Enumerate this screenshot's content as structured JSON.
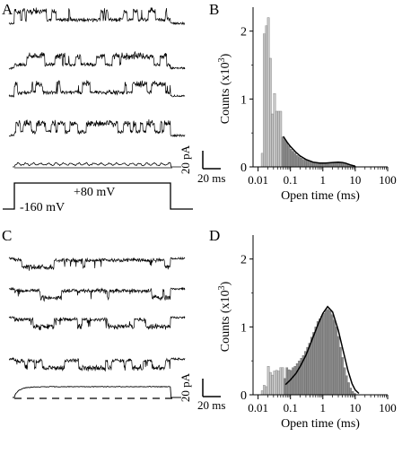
{
  "panel_labels": {
    "a": "A",
    "b": "B",
    "c": "C",
    "d": "D"
  },
  "panel_a": {
    "scale_current": "20 pA",
    "scale_time": "20 ms",
    "voltage_step": "+80 mV",
    "holding_voltage": "-160 mV"
  },
  "panel_c": {
    "scale_current": "20 pA",
    "scale_time": "20 ms"
  },
  "colors": {
    "light_bar": "#c8c8c8",
    "dark_bar": "#8c8c8c",
    "trace": "#000000"
  },
  "chart_data": [
    {
      "type": "bar",
      "panel": "B",
      "xscale": "log",
      "xlim": [
        0.007,
        100
      ],
      "ylim": [
        0,
        2.3
      ],
      "xlabel": "Open time (ms)",
      "ylabel": "Counts (x10",
      "ylabel_sup": "3",
      "ylabel_end": ")",
      "x_ticks": [
        "0.01",
        "0.1",
        "1",
        "10",
        "100"
      ],
      "y_ticks": [
        "0",
        "1",
        "2"
      ],
      "bins": [
        {
          "x": 0.0134,
          "y": 0.2,
          "shade": "light"
        },
        {
          "x": 0.0155,
          "y": 1.96,
          "shade": "light"
        },
        {
          "x": 0.018,
          "y": 2.08,
          "shade": "light"
        },
        {
          "x": 0.0208,
          "y": 2.2,
          "shade": "light"
        },
        {
          "x": 0.0241,
          "y": 1.6,
          "shade": "light"
        },
        {
          "x": 0.0279,
          "y": 0.78,
          "shade": "light"
        },
        {
          "x": 0.0323,
          "y": 1.08,
          "shade": "light"
        },
        {
          "x": 0.0374,
          "y": 0.82,
          "shade": "light"
        },
        {
          "x": 0.0433,
          "y": 0.82,
          "shade": "light"
        },
        {
          "x": 0.0501,
          "y": 0.82,
          "shade": "light"
        },
        {
          "x": 0.058,
          "y": 0.44,
          "shade": "dark"
        },
        {
          "x": 0.0671,
          "y": 0.4,
          "shade": "dark"
        },
        {
          "x": 0.0777,
          "y": 0.36,
          "shade": "dark"
        },
        {
          "x": 0.0899,
          "y": 0.31,
          "shade": "dark"
        },
        {
          "x": 0.104,
          "y": 0.26,
          "shade": "dark"
        },
        {
          "x": 0.12,
          "y": 0.23,
          "shade": "dark"
        },
        {
          "x": 0.139,
          "y": 0.2,
          "shade": "dark"
        },
        {
          "x": 0.161,
          "y": 0.17,
          "shade": "dark"
        },
        {
          "x": 0.187,
          "y": 0.15,
          "shade": "dark"
        },
        {
          "x": 0.216,
          "y": 0.13,
          "shade": "dark"
        },
        {
          "x": 0.25,
          "y": 0.11,
          "shade": "dark"
        },
        {
          "x": 0.29,
          "y": 0.1,
          "shade": "dark"
        },
        {
          "x": 0.335,
          "y": 0.09,
          "shade": "dark"
        },
        {
          "x": 0.388,
          "y": 0.08,
          "shade": "dark"
        },
        {
          "x": 0.449,
          "y": 0.07,
          "shade": "dark"
        },
        {
          "x": 0.52,
          "y": 0.06,
          "shade": "dark"
        },
        {
          "x": 0.6,
          "y": 0.06,
          "shade": "dark"
        },
        {
          "x": 0.7,
          "y": 0.05,
          "shade": "dark"
        },
        {
          "x": 0.81,
          "y": 0.05,
          "shade": "dark"
        },
        {
          "x": 0.93,
          "y": 0.05,
          "shade": "dark"
        },
        {
          "x": 1.08,
          "y": 0.05,
          "shade": "dark"
        },
        {
          "x": 1.25,
          "y": 0.06,
          "shade": "dark"
        },
        {
          "x": 1.45,
          "y": 0.06,
          "shade": "dark"
        },
        {
          "x": 1.68,
          "y": 0.06,
          "shade": "dark"
        },
        {
          "x": 1.94,
          "y": 0.06,
          "shade": "dark"
        },
        {
          "x": 2.25,
          "y": 0.06,
          "shade": "dark"
        },
        {
          "x": 2.6,
          "y": 0.06,
          "shade": "dark"
        },
        {
          "x": 3.01,
          "y": 0.06,
          "shade": "dark"
        },
        {
          "x": 3.49,
          "y": 0.06,
          "shade": "dark"
        },
        {
          "x": 4.04,
          "y": 0.05,
          "shade": "dark"
        },
        {
          "x": 4.67,
          "y": 0.05,
          "shade": "dark"
        },
        {
          "x": 5.41,
          "y": 0.04,
          "shade": "dark"
        },
        {
          "x": 6.26,
          "y": 0.03,
          "shade": "dark"
        },
        {
          "x": 7.25,
          "y": 0.02,
          "shade": "dark"
        },
        {
          "x": 8.39,
          "y": 0.02,
          "shade": "dark"
        },
        {
          "x": 9.71,
          "y": 0.01,
          "shade": "dark"
        }
      ],
      "fit": {
        "x": [
          0.06,
          0.08,
          0.1,
          0.15,
          0.2,
          0.3,
          0.5,
          0.8,
          1.2,
          2,
          3,
          4,
          5,
          7,
          10
        ],
        "y": [
          0.45,
          0.36,
          0.3,
          0.21,
          0.16,
          0.11,
          0.07,
          0.055,
          0.055,
          0.065,
          0.07,
          0.065,
          0.055,
          0.03,
          0.01
        ]
      }
    },
    {
      "type": "bar",
      "panel": "D",
      "xscale": "log",
      "xlim": [
        0.007,
        100
      ],
      "ylim": [
        0,
        2.3
      ],
      "xlabel": "Open time (ms)",
      "ylabel": "Counts (x10",
      "ylabel_sup": "3",
      "ylabel_end": ")",
      "x_ticks": [
        "0.01",
        "0.1",
        "1",
        "10",
        "100"
      ],
      "y_ticks": [
        "0",
        "1",
        "2"
      ],
      "bins": [
        {
          "x": 0.0134,
          "y": 0.06,
          "shade": "light"
        },
        {
          "x": 0.0155,
          "y": 0.14,
          "shade": "light"
        },
        {
          "x": 0.018,
          "y": 0.12,
          "shade": "light"
        },
        {
          "x": 0.0208,
          "y": 0.42,
          "shade": "light"
        },
        {
          "x": 0.0241,
          "y": 0.33,
          "shade": "light"
        },
        {
          "x": 0.0279,
          "y": 0.29,
          "shade": "light"
        },
        {
          "x": 0.0323,
          "y": 0.35,
          "shade": "light"
        },
        {
          "x": 0.0374,
          "y": 0.36,
          "shade": "light"
        },
        {
          "x": 0.0433,
          "y": 0.35,
          "shade": "light"
        },
        {
          "x": 0.0501,
          "y": 0.4,
          "shade": "light"
        },
        {
          "x": 0.058,
          "y": 0.4,
          "shade": "light"
        },
        {
          "x": 0.0671,
          "y": 0.24,
          "shade": "dark"
        },
        {
          "x": 0.0777,
          "y": 0.4,
          "shade": "dark"
        },
        {
          "x": 0.0899,
          "y": 0.37,
          "shade": "dark"
        },
        {
          "x": 0.104,
          "y": 0.36,
          "shade": "dark"
        },
        {
          "x": 0.12,
          "y": 0.4,
          "shade": "dark"
        },
        {
          "x": 0.139,
          "y": 0.42,
          "shade": "dark"
        },
        {
          "x": 0.161,
          "y": 0.46,
          "shade": "dark"
        },
        {
          "x": 0.187,
          "y": 0.5,
          "shade": "dark"
        },
        {
          "x": 0.216,
          "y": 0.54,
          "shade": "dark"
        },
        {
          "x": 0.25,
          "y": 0.58,
          "shade": "dark"
        },
        {
          "x": 0.29,
          "y": 0.64,
          "shade": "dark"
        },
        {
          "x": 0.335,
          "y": 0.7,
          "shade": "dark"
        },
        {
          "x": 0.388,
          "y": 0.76,
          "shade": "dark"
        },
        {
          "x": 0.449,
          "y": 0.85,
          "shade": "dark"
        },
        {
          "x": 0.52,
          "y": 0.92,
          "shade": "dark"
        },
        {
          "x": 0.6,
          "y": 1.0,
          "shade": "dark"
        },
        {
          "x": 0.7,
          "y": 1.08,
          "shade": "dark"
        },
        {
          "x": 0.81,
          "y": 1.12,
          "shade": "dark"
        },
        {
          "x": 0.93,
          "y": 1.16,
          "shade": "dark"
        },
        {
          "x": 1.08,
          "y": 1.2,
          "shade": "dark"
        },
        {
          "x": 1.25,
          "y": 1.25,
          "shade": "dark"
        },
        {
          "x": 1.45,
          "y": 1.26,
          "shade": "dark"
        },
        {
          "x": 1.68,
          "y": 1.24,
          "shade": "dark"
        },
        {
          "x": 1.94,
          "y": 1.18,
          "shade": "dark"
        },
        {
          "x": 2.25,
          "y": 1.1,
          "shade": "dark"
        },
        {
          "x": 2.6,
          "y": 1.0,
          "shade": "dark"
        },
        {
          "x": 3.01,
          "y": 0.86,
          "shade": "dark"
        },
        {
          "x": 3.49,
          "y": 0.7,
          "shade": "dark"
        },
        {
          "x": 4.04,
          "y": 0.55,
          "shade": "dark"
        },
        {
          "x": 4.67,
          "y": 0.4,
          "shade": "dark"
        },
        {
          "x": 5.41,
          "y": 0.28,
          "shade": "dark"
        },
        {
          "x": 6.26,
          "y": 0.18,
          "shade": "dark"
        },
        {
          "x": 7.25,
          "y": 0.1,
          "shade": "dark"
        },
        {
          "x": 8.39,
          "y": 0.05,
          "shade": "dark"
        },
        {
          "x": 9.71,
          "y": 0.02,
          "shade": "dark"
        }
      ],
      "fit": {
        "x": [
          0.07,
          0.1,
          0.15,
          0.2,
          0.3,
          0.5,
          0.7,
          1,
          1.4,
          2,
          3,
          4,
          6,
          8,
          10,
          13
        ],
        "y": [
          0.15,
          0.22,
          0.32,
          0.42,
          0.58,
          0.85,
          1.03,
          1.2,
          1.3,
          1.22,
          0.95,
          0.7,
          0.35,
          0.16,
          0.07,
          0.02
        ]
      }
    }
  ]
}
